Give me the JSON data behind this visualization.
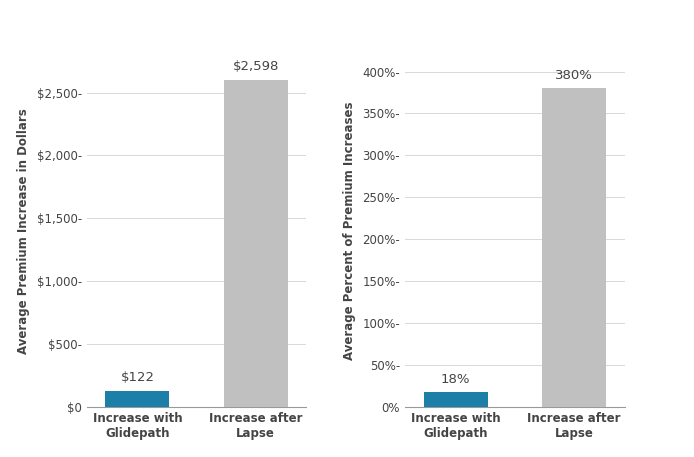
{
  "left_chart": {
    "categories": [
      "Increase with\nGlidepath",
      "Increase after\nLapse"
    ],
    "values": [
      122,
      2598
    ],
    "colors": [
      "#1b7fa8",
      "#c0c0c0"
    ],
    "ylabel": "Average Premium Increase in Dollars",
    "ylim": [
      0,
      2800
    ],
    "yticks": [
      0,
      500,
      1000,
      1500,
      2000,
      2500
    ],
    "ytick_labels": [
      "$0",
      "$500-",
      "$1,000-",
      "$1,500-",
      "$2,000-",
      "$2,500-"
    ],
    "bar_labels": [
      "$122",
      "$2,598"
    ],
    "bar_label_offsets": [
      55,
      55
    ]
  },
  "right_chart": {
    "categories": [
      "Increase with\nGlidepath",
      "Increase after\nLapse"
    ],
    "values": [
      18,
      380
    ],
    "colors": [
      "#1b7fa8",
      "#c0c0c0"
    ],
    "ylabel": "Average Percent of Premium Increases",
    "ylim": [
      0,
      420
    ],
    "yticks": [
      0,
      50,
      100,
      150,
      200,
      250,
      300,
      350,
      400
    ],
    "ytick_labels": [
      "0%",
      "50%-",
      "100%-",
      "150%-",
      "200%-",
      "250%-",
      "300%-",
      "350%-",
      "400%-"
    ],
    "bar_labels": [
      "18%",
      "380%"
    ],
    "bar_label_offsets": [
      7,
      7
    ]
  },
  "background_color": "#ffffff",
  "grid_color": "#d8d8d8",
  "tick_label_fontsize": 8.5,
  "ylabel_fontsize": 8.5,
  "bar_label_fontsize": 9.5,
  "xtick_fontsize": 8.5,
  "bar_width": 0.38,
  "text_color": "#444444",
  "axis_color": "#999999"
}
